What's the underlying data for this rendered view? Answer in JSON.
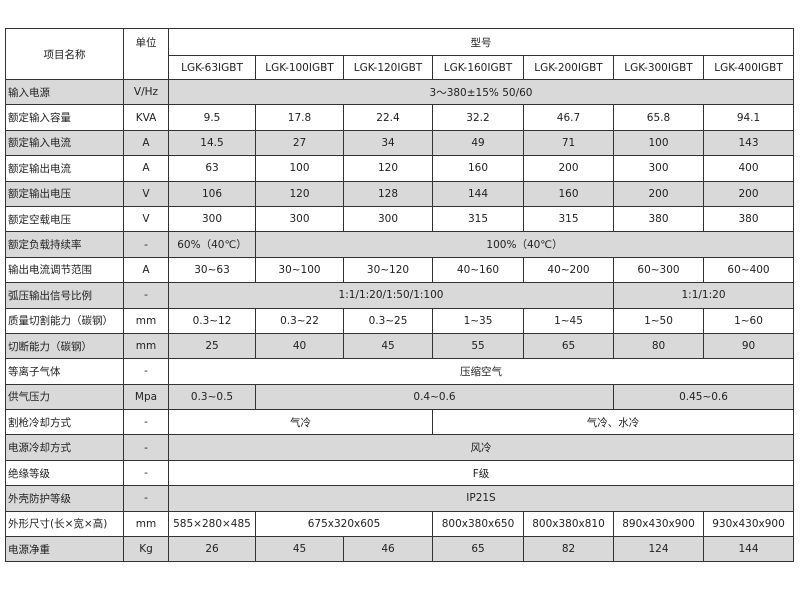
{
  "header": {
    "name_label": "项目名称",
    "unit_label": "单位",
    "model_label": "型号",
    "models": [
      "LGK-63IGBT",
      "LGK-100IGBT",
      "LGK-120IGBT",
      "LGK-160IGBT",
      "LGK-200IGBT",
      "LGK-300IGBT",
      "LGK-400IGBT"
    ]
  },
  "rows": [
    {
      "name": "输入电源",
      "unit": "V/Hz",
      "cells": [
        {
          "text": "3～380±15% 50/60",
          "span": 7
        }
      ]
    },
    {
      "name": "额定输入容量",
      "unit": "KVA",
      "cells": [
        {
          "text": "9.5",
          "span": 1
        },
        {
          "text": "17.8",
          "span": 1
        },
        {
          "text": "22.4",
          "span": 1
        },
        {
          "text": "32.2",
          "span": 1
        },
        {
          "text": "46.7",
          "span": 1
        },
        {
          "text": "65.8",
          "span": 1
        },
        {
          "text": "94.1",
          "span": 1
        }
      ]
    },
    {
      "name": "额定输入电流",
      "unit": "A",
      "cells": [
        {
          "text": "14.5",
          "span": 1
        },
        {
          "text": "27",
          "span": 1
        },
        {
          "text": "34",
          "span": 1
        },
        {
          "text": "49",
          "span": 1
        },
        {
          "text": "71",
          "span": 1
        },
        {
          "text": "100",
          "span": 1
        },
        {
          "text": "143",
          "span": 1
        }
      ]
    },
    {
      "name": "额定输出电流",
      "unit": "A",
      "cells": [
        {
          "text": "63",
          "span": 1
        },
        {
          "text": "100",
          "span": 1
        },
        {
          "text": "120",
          "span": 1
        },
        {
          "text": "160",
          "span": 1
        },
        {
          "text": "200",
          "span": 1
        },
        {
          "text": "300",
          "span": 1
        },
        {
          "text": "400",
          "span": 1
        }
      ]
    },
    {
      "name": "额定输出电压",
      "unit": "V",
      "cells": [
        {
          "text": "106",
          "span": 1
        },
        {
          "text": "120",
          "span": 1
        },
        {
          "text": "128",
          "span": 1
        },
        {
          "text": "144",
          "span": 1
        },
        {
          "text": "160",
          "span": 1
        },
        {
          "text": "200",
          "span": 1
        },
        {
          "text": "200",
          "span": 1
        }
      ]
    },
    {
      "name": "额定空载电压",
      "unit": "V",
      "cells": [
        {
          "text": "300",
          "span": 1
        },
        {
          "text": "300",
          "span": 1
        },
        {
          "text": "300",
          "span": 1
        },
        {
          "text": "315",
          "span": 1
        },
        {
          "text": "315",
          "span": 1
        },
        {
          "text": "380",
          "span": 1
        },
        {
          "text": "380",
          "span": 1
        }
      ]
    },
    {
      "name": "额定负载持续率",
      "unit": "-",
      "cells": [
        {
          "text": "60%（40℃）",
          "span": 1
        },
        {
          "text": "100%（40℃）",
          "span": 6
        }
      ]
    },
    {
      "name": "输出电流调节范围",
      "unit": "A",
      "cells": [
        {
          "text": "30~63",
          "span": 1
        },
        {
          "text": "30~100",
          "span": 1
        },
        {
          "text": "30~120",
          "span": 1
        },
        {
          "text": "40~160",
          "span": 1
        },
        {
          "text": "40~200",
          "span": 1
        },
        {
          "text": "60~300",
          "span": 1
        },
        {
          "text": "60~400",
          "span": 1
        }
      ]
    },
    {
      "name": "弧压输出信号比例",
      "unit": "-",
      "cells": [
        {
          "text": "1:1/1:20/1:50/1:100",
          "span": 5
        },
        {
          "text": "1:1/1:20",
          "span": 2
        }
      ]
    },
    {
      "name": "质量切割能力（碳钢）",
      "unit": "mm",
      "cells": [
        {
          "text": "0.3~12",
          "span": 1
        },
        {
          "text": "0.3~22",
          "span": 1
        },
        {
          "text": "0.3~25",
          "span": 1
        },
        {
          "text": "1~35",
          "span": 1
        },
        {
          "text": "1~45",
          "span": 1
        },
        {
          "text": "1~50",
          "span": 1
        },
        {
          "text": "1~60",
          "span": 1
        }
      ]
    },
    {
      "name": "切断能力（碳钢）",
      "unit": "mm",
      "cells": [
        {
          "text": "25",
          "span": 1
        },
        {
          "text": "40",
          "span": 1
        },
        {
          "text": "45",
          "span": 1
        },
        {
          "text": "55",
          "span": 1
        },
        {
          "text": "65",
          "span": 1
        },
        {
          "text": "80",
          "span": 1
        },
        {
          "text": "90",
          "span": 1
        }
      ]
    },
    {
      "name": "等离子气体",
      "unit": "-",
      "cells": [
        {
          "text": "压缩空气",
          "span": 7
        }
      ]
    },
    {
      "name": "供气压力",
      "unit": "Mpa",
      "cells": [
        {
          "text": "0.3~0.5",
          "span": 1
        },
        {
          "text": "0.4~0.6",
          "span": 4
        },
        {
          "text": "0.45~0.6",
          "span": 2
        }
      ]
    },
    {
      "name": "割枪冷却方式",
      "unit": "-",
      "cells": [
        {
          "text": "气冷",
          "span": 3
        },
        {
          "text": "气冷、水冷",
          "span": 4
        }
      ]
    },
    {
      "name": "电源冷却方式",
      "unit": "-",
      "cells": [
        {
          "text": "风冷",
          "span": 7
        }
      ]
    },
    {
      "name": "绝缘等级",
      "unit": "-",
      "cells": [
        {
          "text": "F级",
          "span": 7
        }
      ]
    },
    {
      "name": "外壳防护等级",
      "unit": "-",
      "cells": [
        {
          "text": "IP21S",
          "span": 7
        }
      ]
    },
    {
      "name": "外形尺寸(长×宽×高)",
      "unit": "mm",
      "cells": [
        {
          "text": "585×280×485",
          "span": 1
        },
        {
          "text": "675x320x605",
          "span": 2
        },
        {
          "text": "800x380x650",
          "span": 1
        },
        {
          "text": "800x380x810",
          "span": 1
        },
        {
          "text": "890x430x900",
          "span": 1
        },
        {
          "text": "930x430x900",
          "span": 1
        }
      ]
    },
    {
      "name": "电源净重",
      "unit": "Kg",
      "cells": [
        {
          "text": "26",
          "span": 1
        },
        {
          "text": "45",
          "span": 1
        },
        {
          "text": "46",
          "span": 1
        },
        {
          "text": "65",
          "span": 1
        },
        {
          "text": "82",
          "span": 1
        },
        {
          "text": "124",
          "span": 1
        },
        {
          "text": "144",
          "span": 1
        }
      ]
    }
  ],
  "colors": {
    "row_shade": "#d9d9d9",
    "border": "#333333"
  }
}
